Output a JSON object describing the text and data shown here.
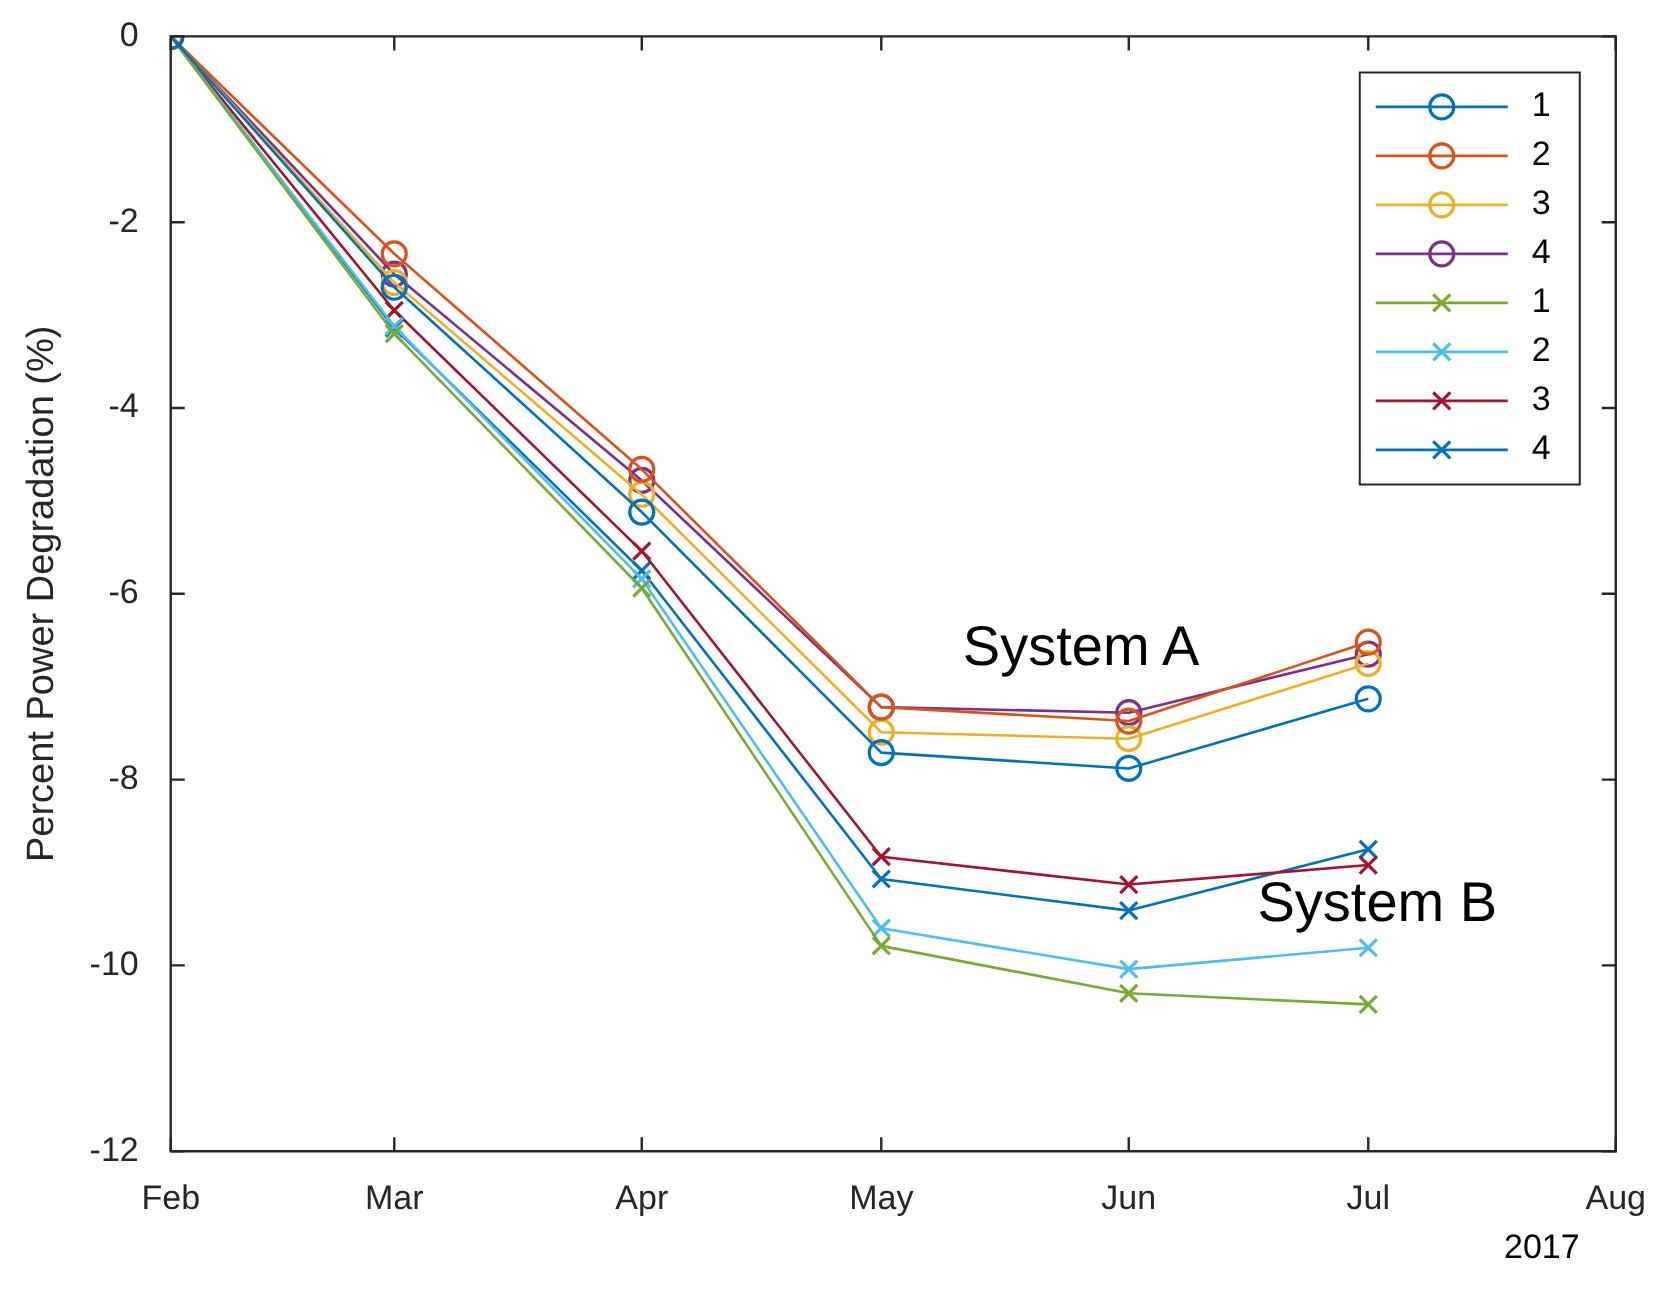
{
  "chart_data": {
    "type": "line",
    "ylabel": "Percent Power Degradation (%)",
    "x": [
      "2017-02",
      "2017-03",
      "2017-04",
      "2017-05",
      "2017-06",
      "2017-07"
    ],
    "xlim": [
      "2017-02",
      "2017-08"
    ],
    "xticks": [
      {
        "value": "2017-02",
        "label": "Feb"
      },
      {
        "value": "2017-03",
        "label": "Mar"
      },
      {
        "value": "2017-04",
        "label": "Apr"
      },
      {
        "value": "2017-05",
        "label": "May"
      },
      {
        "value": "2017-06",
        "label": "Jun"
      },
      {
        "value": "2017-07",
        "label": "Jul"
      },
      {
        "value": "2017-08",
        "label": "Aug"
      }
    ],
    "ylim": [
      -12,
      0
    ],
    "yticks": [
      -12,
      -10,
      -8,
      -6,
      -4,
      -2,
      0
    ],
    "grid": false,
    "legend": "top right",
    "line_style": "solid",
    "series": [
      {
        "name": "1",
        "color": "#0072bd",
        "marker": "circle",
        "values": [
          0,
          -2.7,
          -5.12,
          -7.71,
          -7.88,
          -7.13
        ]
      },
      {
        "name": "2",
        "color": "#d95319",
        "marker": "circle",
        "values": [
          0,
          -2.34,
          -4.66,
          -7.22,
          -7.37,
          -6.52
        ]
      },
      {
        "name": "3",
        "color": "#edb120",
        "marker": "circle",
        "values": [
          0,
          -2.65,
          -4.93,
          -7.49,
          -7.56,
          -6.75
        ]
      },
      {
        "name": "4",
        "color": "#7e2f8e",
        "marker": "circle",
        "values": [
          0,
          -2.56,
          -4.78,
          -7.22,
          -7.28,
          -6.65
        ]
      },
      {
        "name": "1",
        "color": "#77ac30",
        "marker": "cross",
        "values": [
          0,
          -3.2,
          -5.94,
          -9.79,
          -10.3,
          -10.42
        ]
      },
      {
        "name": "2",
        "color": "#4dbeee",
        "marker": "cross",
        "values": [
          0,
          -3.12,
          -5.84,
          -9.6,
          -10.04,
          -9.81
        ]
      },
      {
        "name": "3",
        "color": "#a2142f",
        "marker": "cross",
        "values": [
          0,
          -2.95,
          -5.54,
          -8.83,
          -9.13,
          -8.92
        ]
      },
      {
        "name": "4",
        "color": "#0072bd",
        "marker": "cross",
        "values": [
          0,
          -3.14,
          -5.75,
          -9.07,
          -9.41,
          -8.75
        ]
      }
    ],
    "annotations": [
      "System A",
      "System B",
      "2017"
    ]
  }
}
